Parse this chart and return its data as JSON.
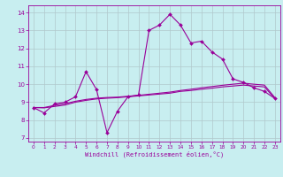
{
  "title": "",
  "xlabel": "Windchill (Refroidissement éolien,°C)",
  "ylabel": "",
  "bg_color": "#c8eef0",
  "grid_color": "#b0c8cc",
  "line_color": "#990099",
  "xlim": [
    -0.5,
    23.5
  ],
  "ylim": [
    6.8,
    14.4
  ],
  "xticks": [
    0,
    1,
    2,
    3,
    4,
    5,
    6,
    7,
    8,
    9,
    10,
    11,
    12,
    13,
    14,
    15,
    16,
    17,
    18,
    19,
    20,
    21,
    22,
    23
  ],
  "yticks": [
    7,
    8,
    9,
    10,
    11,
    12,
    13,
    14
  ],
  "hours": [
    0,
    1,
    2,
    3,
    4,
    5,
    6,
    7,
    8,
    9,
    10,
    11,
    12,
    13,
    14,
    15,
    16,
    17,
    18,
    19,
    20,
    21,
    22,
    23
  ],
  "line1": [
    8.7,
    8.4,
    8.9,
    9.0,
    9.3,
    10.7,
    9.7,
    7.3,
    8.5,
    9.3,
    9.4,
    13.0,
    13.3,
    13.9,
    13.3,
    12.3,
    12.4,
    11.8,
    11.4,
    10.3,
    10.1,
    9.8,
    9.6,
    9.2
  ],
  "line2": [
    8.7,
    8.68,
    8.76,
    8.84,
    9.0,
    9.1,
    9.18,
    9.22,
    9.25,
    9.3,
    9.35,
    9.4,
    9.45,
    9.5,
    9.6,
    9.65,
    9.72,
    9.78,
    9.85,
    9.9,
    9.95,
    9.9,
    9.85,
    9.2
  ],
  "line3": [
    8.7,
    8.7,
    8.82,
    8.92,
    9.05,
    9.15,
    9.22,
    9.26,
    9.28,
    9.33,
    9.38,
    9.44,
    9.5,
    9.56,
    9.65,
    9.72,
    9.8,
    9.87,
    9.94,
    10.0,
    10.06,
    10.0,
    9.95,
    9.25
  ]
}
